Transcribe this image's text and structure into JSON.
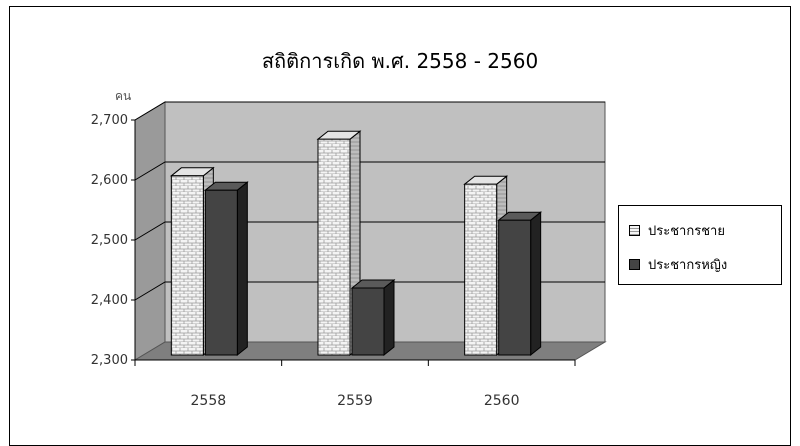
{
  "chart_data": {
    "type": "bar",
    "title": "สถิติการเกิด  พ.ศ. 2558 - 2560",
    "ylabel": "คน",
    "xlabel": "",
    "categories": [
      "2558",
      "2559",
      "2560"
    ],
    "series": [
      {
        "name": "ประชากรชาย",
        "values": [
          2607,
          2668,
          2593
        ],
        "color": "#f4f4f4"
      },
      {
        "name": "ประชากรหญิง",
        "values": [
          2583,
          2420,
          2533
        ],
        "color": "#444444"
      }
    ],
    "ylim": [
      2300,
      2700
    ],
    "yticks": [
      "2,300",
      "2,400",
      "2,500",
      "2,600",
      "2,700"
    ],
    "grid": true,
    "legend_position": "right",
    "colors": {
      "wall": "#c0c0c0",
      "side_wall": "#9a9a9a",
      "floor": "#7f7f7f",
      "male_pattern": "brick"
    }
  }
}
